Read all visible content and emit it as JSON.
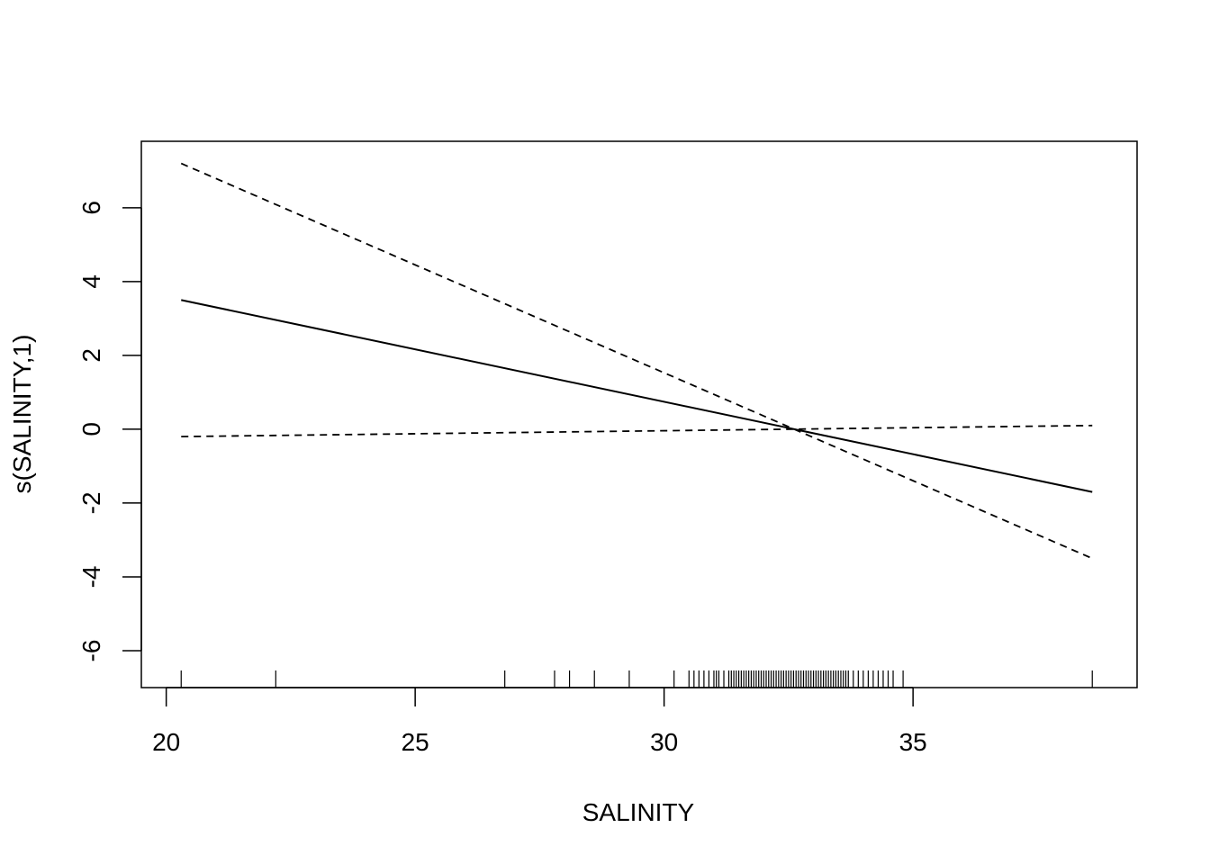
{
  "chart_data": {
    "type": "line",
    "xlabel": "SALINITY",
    "ylabel": "s(SALINITY,1)",
    "xlim": [
      19.5,
      39.5
    ],
    "ylim": [
      -7.0,
      7.8
    ],
    "x_ticks": [
      20,
      25,
      30,
      35
    ],
    "y_ticks": [
      6,
      4,
      2,
      0,
      -2,
      -4,
      -6
    ],
    "x_tick_labels": [
      "20",
      "25",
      "30",
      "35"
    ],
    "y_tick_labels": [
      "6",
      "4",
      "2",
      "0",
      "-2",
      "-4",
      "-6"
    ],
    "series": [
      {
        "style": "solid",
        "x": [
          20.3,
          38.6
        ],
        "y": [
          3.5,
          -1.7
        ]
      },
      {
        "style": "dashed",
        "x": [
          20.3,
          38.6
        ],
        "y": [
          7.2,
          -3.5
        ]
      },
      {
        "style": "dashed",
        "x": [
          20.3,
          38.6
        ],
        "y": [
          -0.2,
          0.1
        ]
      }
    ],
    "rug": [
      20.3,
      22.2,
      26.8,
      27.8,
      28.1,
      28.6,
      29.3,
      30.2,
      30.5,
      30.6,
      30.7,
      30.8,
      30.9,
      31.0,
      31.05,
      31.1,
      31.2,
      31.3,
      31.35,
      31.4,
      31.45,
      31.5,
      31.55,
      31.6,
      31.65,
      31.7,
      31.75,
      31.8,
      31.85,
      31.9,
      31.95,
      32.0,
      32.05,
      32.1,
      32.15,
      32.2,
      32.25,
      32.3,
      32.35,
      32.4,
      32.45,
      32.5,
      32.55,
      32.6,
      32.65,
      32.7,
      32.75,
      32.8,
      32.85,
      32.9,
      32.95,
      33.0,
      33.05,
      33.1,
      33.15,
      33.2,
      33.25,
      33.3,
      33.35,
      33.4,
      33.45,
      33.5,
      33.55,
      33.6,
      33.65,
      33.7,
      33.8,
      33.9,
      34.0,
      34.1,
      34.2,
      34.3,
      34.4,
      34.5,
      34.6,
      34.8,
      38.6
    ],
    "grid": false,
    "legend": "none"
  }
}
